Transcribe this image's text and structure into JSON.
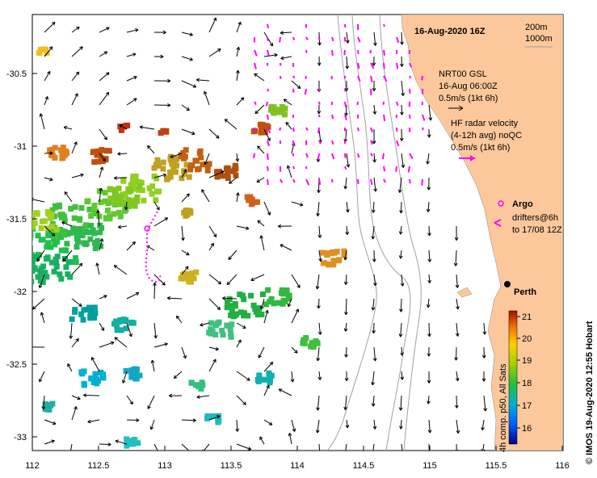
{
  "map": {
    "title": "16-Aug-2020 16Z",
    "lon_ticks": [
      "112",
      "112.5",
      "113",
      "113.5",
      "114",
      "114.5",
      "115",
      "115.5",
      "116"
    ],
    "lat_ticks": [
      "-30.5",
      "-31",
      "-31.5",
      "-32",
      "-32.5",
      "-33"
    ],
    "depth_contours": [
      "200m",
      "1000m"
    ],
    "place": "Perth",
    "credit": "© IMOS 19-Aug-2020 12:55 Hobart",
    "legend": {
      "nrt": [
        "NRT00 GSL",
        "16-Aug 06:00Z",
        "0.5m/s (1kt 6h)"
      ],
      "hf": [
        "HF radar velocity",
        "(4-12h avg) noQC",
        "0.5m/s (1kt 6h)"
      ],
      "argo": "Argo",
      "drifters": [
        "drifters@6h",
        "to 17/08 12Z"
      ]
    },
    "colorbar": {
      "label": "4h comp. p50, All Sats",
      "ticks": [
        "21",
        "20",
        "19",
        "18",
        "17",
        "16"
      ]
    },
    "colors": {
      "land": "#fcc89b",
      "hf_arrows": "#ff00ff",
      "contours": "#a0a0a0"
    }
  }
}
